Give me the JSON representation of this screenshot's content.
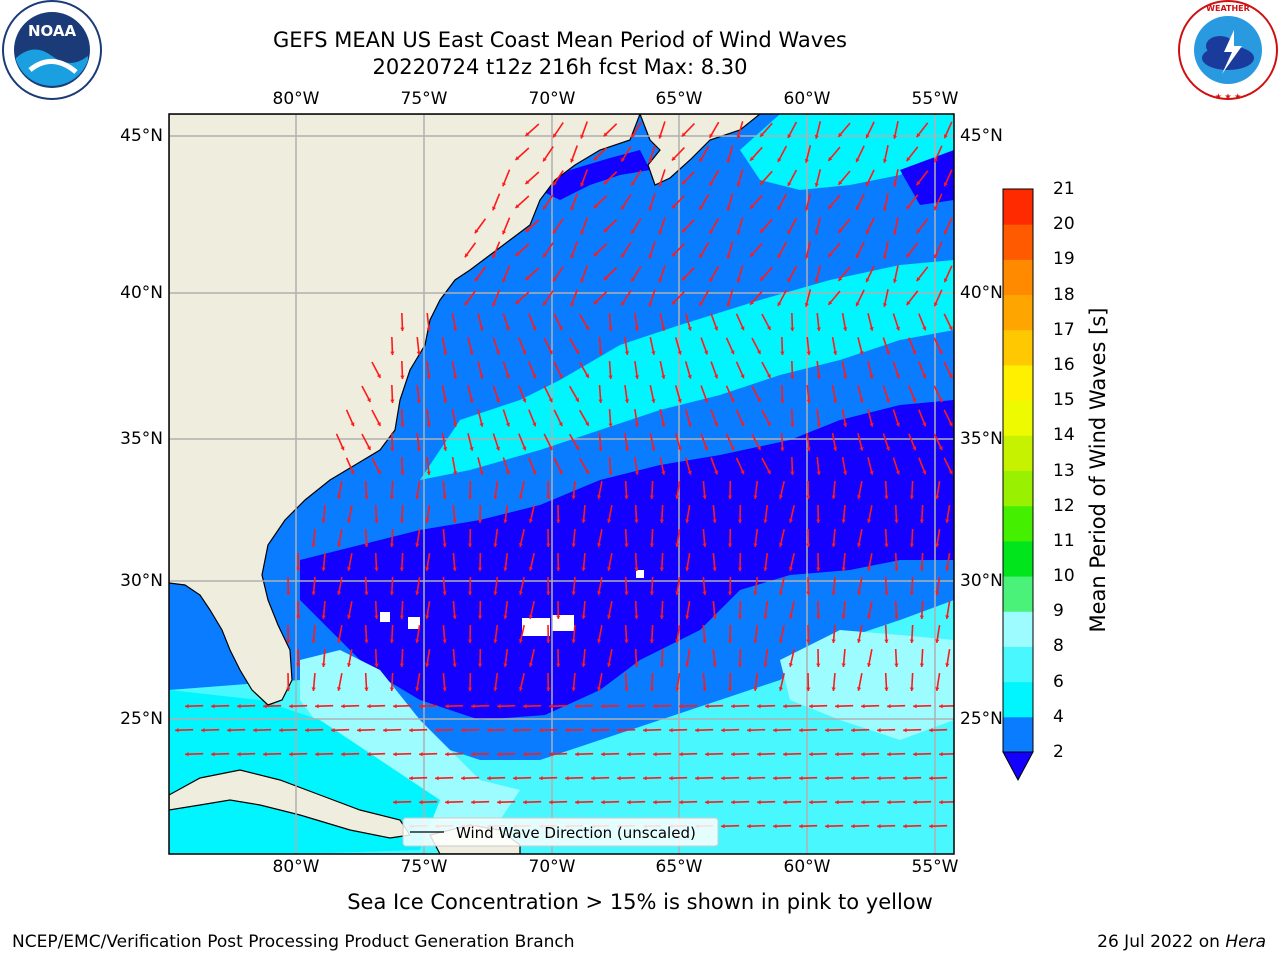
{
  "header": {
    "title_line1": "GEFS MEAN US East Coast Mean Period of Wind Waves",
    "title_line2": "20220724 t12z 216h fcst   Max: 8.30"
  },
  "logos": {
    "left_name": "NOAA",
    "left_ring_text": "NATIONAL OCEANIC AND ATMOSPHERIC ADMINISTRATION · U.S. DEPARTMENT OF COMMERCE",
    "right_ring_text": "NATIONAL WEATHER SERVICE"
  },
  "map": {
    "lon_ticks": [
      "80°W",
      "75°W",
      "70°W",
      "65°W",
      "60°W",
      "55°W"
    ],
    "lat_ticks": [
      "45°N",
      "40°N",
      "35°N",
      "30°N",
      "25°N"
    ],
    "legend_label": "Wind Wave Direction (unscaled)",
    "colors": {
      "land": "#efedde",
      "grid": "#b0b0b0",
      "arrow": "#ff1a1a"
    }
  },
  "colorbar": {
    "label": "Mean Period of Wind Waves [s]",
    "ticks": [
      "2",
      "4",
      "6",
      "8",
      "9",
      "10",
      "11",
      "12",
      "13",
      "14",
      "15",
      "16",
      "17",
      "18",
      "19",
      "20",
      "21"
    ],
    "bands": [
      "#0a7cff",
      "#00f5ff",
      "#49f8ff",
      "#9cfcff",
      "#4af27a",
      "#00e51c",
      "#44f000",
      "#99f000",
      "#c6f200",
      "#edfa00",
      "#fff000",
      "#ffc800",
      "#ffa500",
      "#ff8a00",
      "#ff5a00",
      "#ff2a00"
    ],
    "under_color": "#1400ff"
  },
  "note": "Sea Ice Concentration > 15% is shown in pink to yellow",
  "footer": {
    "left": "NCEP/EMC/Verification Post Processing Product Generation Branch",
    "date": "26 Jul 2022 on ",
    "host": "Hera"
  }
}
